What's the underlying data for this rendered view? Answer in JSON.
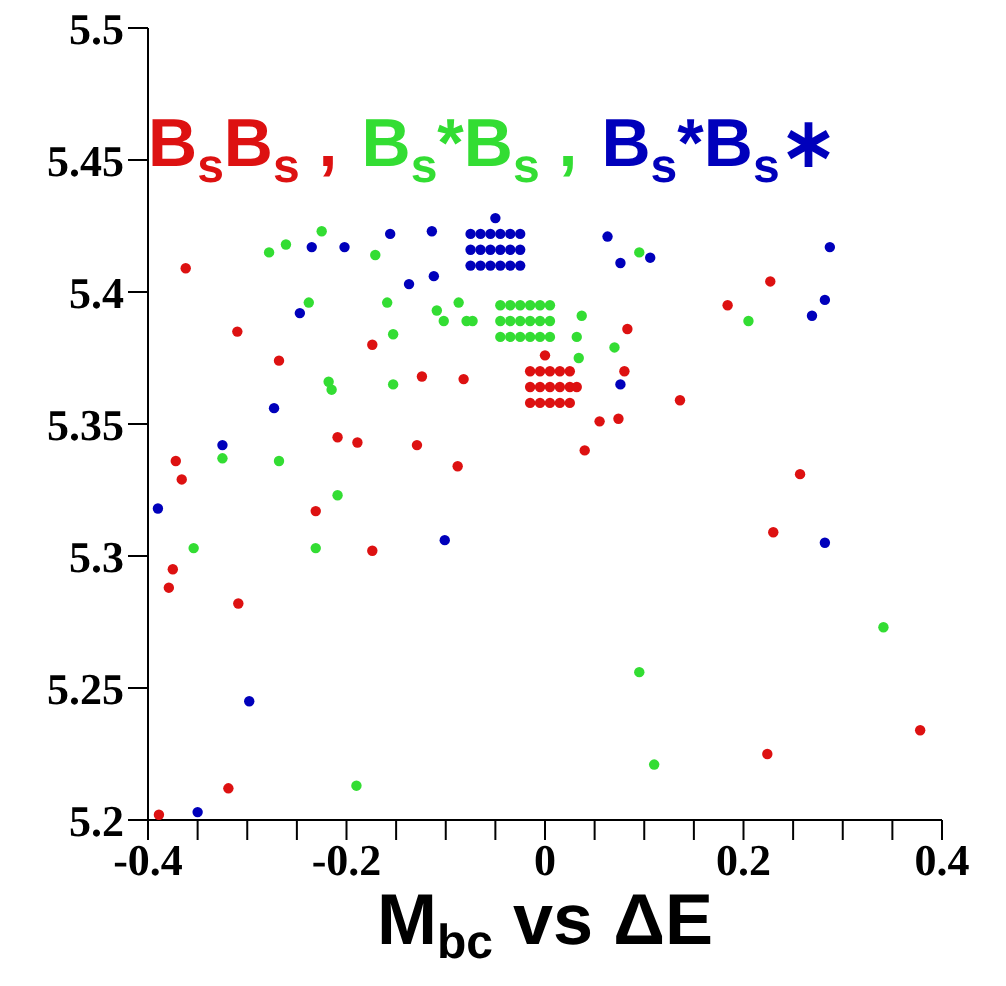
{
  "chart_data": {
    "type": "scatter",
    "xlabel": "M$_{bc}$ vs ΔE",
    "xlim": [
      -0.4,
      0.4
    ],
    "ylim": [
      5.2,
      5.5
    ],
    "xticks": [
      -0.4,
      {
        "value": -0.35,
        "label": null
      },
      {
        "value": -0.3,
        "label": null
      },
      {
        "value": -0.25,
        "label": null
      },
      -0.2,
      {
        "value": -0.15,
        "label": null
      },
      {
        "value": -0.1,
        "label": null
      },
      {
        "value": -0.05,
        "label": null
      },
      0,
      {
        "value": 0.05,
        "label": null
      },
      {
        "value": 0.1,
        "label": null
      },
      {
        "value": 0.15,
        "label": null
      },
      0.2,
      {
        "value": 0.25,
        "label": null
      },
      {
        "value": 0.3,
        "label": null
      },
      {
        "value": 0.35,
        "label": null
      },
      0.4
    ],
    "yticks": [
      5.2,
      5.25,
      5.3,
      5.35,
      5.4,
      5.45,
      5.5
    ],
    "marker": "circle",
    "legend": "top",
    "series": [
      {
        "name": "B$_{s}$B$_{s}$ ,",
        "color": "#dd1111",
        "x": [
          -0.362,
          -0.31,
          -0.268,
          -0.174,
          -0.124,
          -0.082,
          -0.209,
          -0.189,
          -0.129,
          -0.088,
          -0.372,
          -0.366,
          -0.231,
          -0.174,
          -0.375,
          -0.379,
          -0.389,
          -0.309,
          -0.319,
          0.224,
          0.378,
          0.227,
          0.184,
          0.083,
          0.08,
          0.136,
          0.074,
          0.055,
          0.04,
          0.257,
          0.23,
          -0.015,
          -0.005,
          0.005,
          0.015,
          0.025,
          -0.015,
          -0.005,
          0.005,
          0.015,
          0.025,
          -0.015,
          -0.005,
          0.005,
          0.015,
          0.025,
          0.0,
          0.032
        ],
        "values": [
          5.409,
          5.385,
          5.374,
          5.38,
          5.368,
          5.367,
          5.345,
          5.343,
          5.342,
          5.334,
          5.336,
          5.329,
          5.317,
          5.302,
          5.295,
          5.288,
          5.202,
          5.282,
          5.212,
          5.225,
          5.234,
          5.404,
          5.395,
          5.386,
          5.37,
          5.359,
          5.352,
          5.351,
          5.34,
          5.331,
          5.309,
          5.358,
          5.358,
          5.358,
          5.358,
          5.358,
          5.364,
          5.364,
          5.364,
          5.364,
          5.364,
          5.37,
          5.37,
          5.37,
          5.37,
          5.37,
          5.376,
          5.364
        ]
      },
      {
        "name": "B$_{s}$*B$_{s}$ ,",
        "color": "#33dd33",
        "x": [
          -0.278,
          -0.261,
          -0.225,
          -0.171,
          -0.238,
          -0.159,
          -0.153,
          -0.218,
          -0.215,
          -0.153,
          -0.325,
          -0.268,
          -0.209,
          -0.354,
          -0.231,
          -0.109,
          -0.102,
          -0.087,
          -0.079,
          -0.073,
          0.095,
          0.205,
          0.07,
          0.037,
          0.032,
          0.034,
          -0.19,
          0.095,
          0.11,
          0.341,
          -0.045,
          -0.035,
          -0.025,
          -0.015,
          -0.005,
          0.005,
          -0.045,
          -0.035,
          -0.025,
          -0.015,
          -0.005,
          0.005,
          -0.045,
          -0.035,
          -0.025,
          -0.015,
          -0.005,
          0.005
        ],
        "values": [
          5.415,
          5.418,
          5.423,
          5.414,
          5.396,
          5.396,
          5.384,
          5.366,
          5.363,
          5.365,
          5.337,
          5.336,
          5.323,
          5.303,
          5.303,
          5.393,
          5.389,
          5.396,
          5.389,
          5.389,
          5.415,
          5.389,
          5.379,
          5.391,
          5.383,
          5.375,
          5.213,
          5.256,
          5.221,
          5.273,
          5.383,
          5.383,
          5.383,
          5.383,
          5.383,
          5.383,
          5.389,
          5.389,
          5.389,
          5.389,
          5.389,
          5.389,
          5.395,
          5.395,
          5.395,
          5.395,
          5.395,
          5.395
        ]
      },
      {
        "name": "B$_{s}$*B$_{s}$∗",
        "color": "#0000bb",
        "x": [
          -0.235,
          -0.202,
          -0.156,
          -0.114,
          -0.137,
          -0.247,
          -0.273,
          -0.325,
          -0.39,
          -0.101,
          -0.112,
          0.063,
          0.076,
          0.106,
          0.287,
          0.282,
          0.269,
          0.076,
          0.282,
          -0.35,
          -0.298,
          -0.075,
          -0.065,
          -0.055,
          -0.045,
          -0.035,
          -0.025,
          -0.075,
          -0.065,
          -0.055,
          -0.045,
          -0.035,
          -0.025,
          -0.075,
          -0.065,
          -0.055,
          -0.045,
          -0.035,
          -0.025,
          -0.05
        ],
        "values": [
          5.417,
          5.417,
          5.422,
          5.423,
          5.403,
          5.392,
          5.356,
          5.342,
          5.318,
          5.306,
          5.406,
          5.421,
          5.411,
          5.413,
          5.417,
          5.397,
          5.391,
          5.365,
          5.305,
          5.203,
          5.245,
          5.41,
          5.41,
          5.41,
          5.41,
          5.41,
          5.41,
          5.416,
          5.416,
          5.416,
          5.416,
          5.416,
          5.416,
          5.422,
          5.422,
          5.422,
          5.422,
          5.422,
          5.422,
          5.428
        ]
      }
    ]
  }
}
